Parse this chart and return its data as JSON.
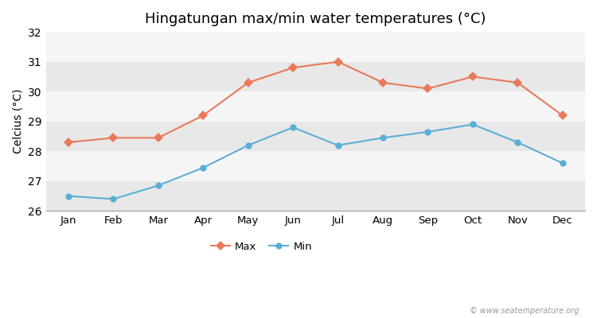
{
  "title": "Hingatungan max/min water temperatures (°C)",
  "ylabel": "Celcius (°C)",
  "months": [
    "Jan",
    "Feb",
    "Mar",
    "Apr",
    "May",
    "Jun",
    "Jul",
    "Aug",
    "Sep",
    "Oct",
    "Nov",
    "Dec"
  ],
  "max_temps": [
    28.3,
    28.45,
    28.45,
    29.2,
    30.3,
    30.8,
    31.0,
    30.3,
    30.1,
    30.5,
    30.3,
    29.2
  ],
  "min_temps": [
    26.5,
    26.4,
    26.85,
    27.45,
    28.2,
    28.8,
    28.2,
    28.45,
    28.65,
    28.9,
    28.3,
    27.6
  ],
  "max_color": "#e8795a",
  "min_color": "#5bafd6",
  "bg_color": "#ffffff",
  "plot_bg_color": "#ffffff",
  "band_colors": [
    "#e8e8e8",
    "#f5f5f5"
  ],
  "ylim": [
    26,
    32
  ],
  "yticks": [
    26,
    27,
    28,
    29,
    30,
    31,
    32
  ],
  "watermark": "© www.seatemperature.org",
  "legend_labels": [
    "Max",
    "Min"
  ],
  "title_fontsize": 13,
  "axis_label_fontsize": 10,
  "tick_fontsize": 9.5
}
